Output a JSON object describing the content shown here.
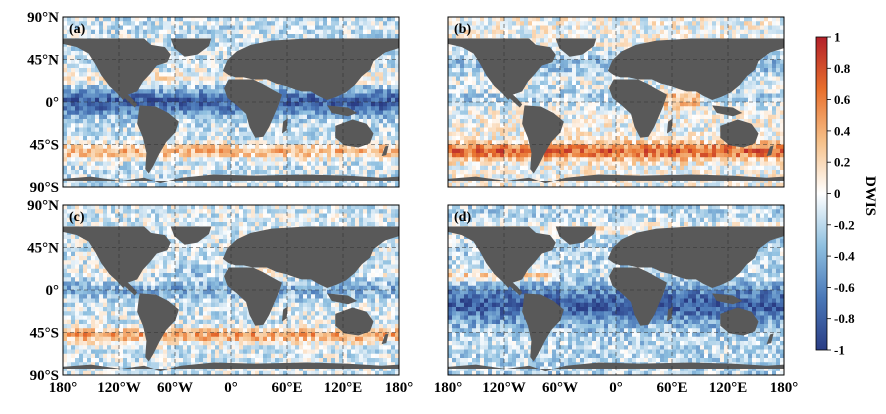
{
  "figure": {
    "panels": [
      {
        "label": "(a)",
        "pattern": "a",
        "show_x_ticks": false
      },
      {
        "label": "(b)",
        "pattern": "b",
        "show_x_ticks": false
      },
      {
        "label": "(c)",
        "pattern": "c",
        "show_x_ticks": true
      },
      {
        "label": "(d)",
        "pattern": "d",
        "show_x_ticks": true
      }
    ]
  },
  "chart_data": {
    "type": "heatmap",
    "title": "",
    "xlabel": "",
    "ylabel": "",
    "x_ticks": [
      "180°",
      "120°W",
      "60°W",
      "0°",
      "60°E",
      "120°E",
      "180°"
    ],
    "y_ticks": [
      "90°N",
      "45°N",
      "0°",
      "45°S",
      "90°S"
    ],
    "xlim": [
      -180,
      180
    ],
    "ylim": [
      -90,
      90
    ],
    "colorbar": {
      "label": "DWIS",
      "range": [
        -1,
        1
      ],
      "ticks": [
        "1",
        "0.8",
        "0.6",
        "0.4",
        "0.2",
        "0",
        "-0.2",
        "-0.4",
        "-0.6",
        "-0.8",
        "-1"
      ],
      "colors": [
        "#2a3d85",
        "#4a78b8",
        "#8fc0e0",
        "#ffffff",
        "#f6c089",
        "#e86f2c",
        "#b3202a"
      ]
    },
    "panels": [
      "(a)",
      "(b)",
      "(c)",
      "(d)"
    ],
    "land_color": "#595959"
  }
}
